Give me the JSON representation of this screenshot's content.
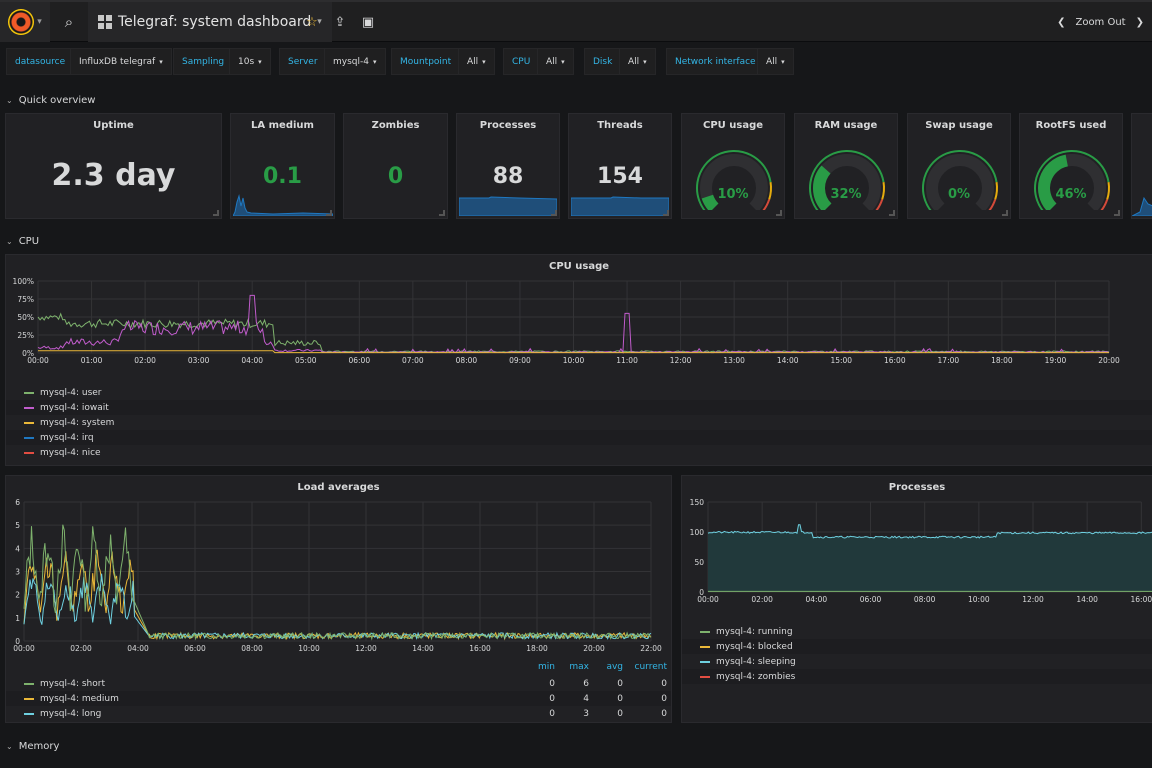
{
  "nav": {
    "dashboard_title": "Telegraf: system dashboard",
    "zoom_out_label": "Zoom Out"
  },
  "template_vars": [
    {
      "label": "datasource",
      "value": "InfluxDB telegraf"
    },
    {
      "label": "Sampling",
      "value": "10s"
    },
    {
      "label": "Server",
      "value": "mysql-4"
    },
    {
      "label": "Mountpoint",
      "value": "All"
    },
    {
      "label": "CPU",
      "value": "All"
    },
    {
      "label": "Disk",
      "value": "All"
    },
    {
      "label": "Network interface",
      "value": "All"
    }
  ],
  "rows": {
    "quick_overview": "Quick overview",
    "cpu": "CPU",
    "memory": "Memory"
  },
  "stats": {
    "uptime": {
      "title": "Uptime",
      "value": "2.3 day"
    },
    "la_medium": {
      "title": "LA medium",
      "value": "0.1"
    },
    "zombies": {
      "title": "Zombies",
      "value": "0"
    },
    "processes": {
      "title": "Processes",
      "value": "88"
    },
    "threads": {
      "title": "Threads",
      "value": "154"
    }
  },
  "gauges": {
    "cpu": {
      "title": "CPU usage",
      "value": "10%",
      "fraction": 0.1
    },
    "ram": {
      "title": "RAM usage",
      "value": "32%",
      "fraction": 0.32
    },
    "swap": {
      "title": "Swap usage",
      "value": "0%",
      "fraction": 0.0
    },
    "rootfs": {
      "title": "RootFS used",
      "value": "46%",
      "fraction": 0.46
    }
  },
  "colors": {
    "green": "#299c46",
    "orange": "#e5ac0e",
    "red": "#d44a3a",
    "blue": "#33b5e5",
    "series_green": "#7eb26d",
    "series_pink": "#c15ccc",
    "series_yellow": "#eab839",
    "series_blue": "#1f78c1",
    "series_red": "#e24d42",
    "series_cyan": "#6ed0e0"
  },
  "cpu_panel": {
    "title": "CPU usage",
    "y_ticks": [
      "100%",
      "75%",
      "50%",
      "25%",
      "0%"
    ],
    "x_ticks": [
      "00:00",
      "01:00",
      "02:00",
      "03:00",
      "04:00",
      "05:00",
      "06:00",
      "07:00",
      "08:00",
      "09:00",
      "10:00",
      "11:00",
      "12:00",
      "13:00",
      "14:00",
      "15:00",
      "16:00",
      "17:00",
      "18:00",
      "19:00",
      "20:00"
    ],
    "legend": [
      {
        "name": "mysql-4: user",
        "color": "#7eb26d"
      },
      {
        "name": "mysql-4: iowait",
        "color": "#c15ccc"
      },
      {
        "name": "mysql-4: system",
        "color": "#eab839"
      },
      {
        "name": "mysql-4: irq",
        "color": "#1f78c1"
      },
      {
        "name": "mysql-4: nice",
        "color": "#e24d42"
      }
    ]
  },
  "load_panel": {
    "title": "Load averages",
    "y_ticks": [
      "6",
      "5",
      "4",
      "3",
      "2",
      "1",
      "0"
    ],
    "x_ticks": [
      "00:00",
      "02:00",
      "04:00",
      "06:00",
      "08:00",
      "10:00",
      "12:00",
      "14:00",
      "16:00",
      "18:00",
      "20:00",
      "22:00"
    ],
    "legend_header": {
      "min": "min",
      "max": "max",
      "avg": "avg",
      "current": "current"
    },
    "legend": [
      {
        "name": "mysql-4: short",
        "color": "#7eb26d",
        "min": "0",
        "max": "6",
        "avg": "0",
        "current": "0"
      },
      {
        "name": "mysql-4: medium",
        "color": "#eab839",
        "min": "0",
        "max": "4",
        "avg": "0",
        "current": "0"
      },
      {
        "name": "mysql-4: long",
        "color": "#6ed0e0",
        "min": "0",
        "max": "3",
        "avg": "0",
        "current": "0"
      }
    ]
  },
  "proc_panel": {
    "title": "Processes",
    "y_ticks": [
      "150",
      "100",
      "50",
      "0"
    ],
    "x_ticks": [
      "00:00",
      "02:00",
      "04:00",
      "06:00",
      "08:00",
      "10:00",
      "12:00",
      "14:00",
      "16:00"
    ],
    "legend": [
      {
        "name": "mysql-4: running",
        "color": "#7eb26d"
      },
      {
        "name": "mysql-4: blocked",
        "color": "#eab839"
      },
      {
        "name": "mysql-4: sleeping",
        "color": "#6ed0e0"
      },
      {
        "name": "mysql-4: zombies",
        "color": "#e24d42"
      }
    ]
  }
}
